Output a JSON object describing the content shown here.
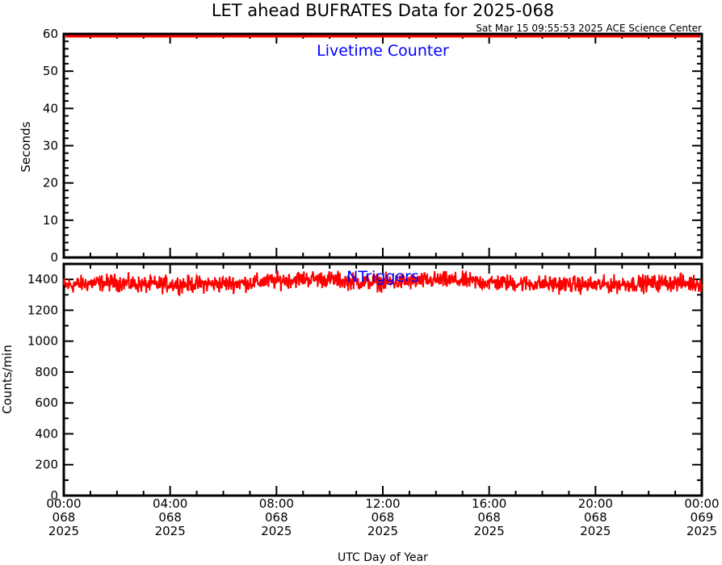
{
  "chart_data": [
    {
      "type": "line",
      "title": "LET ahead BUFRATES Data for 2025-068",
      "subtitle": "Sat Mar 15 09:55:53 2025 ACE Science Center",
      "ylabel": "Seconds",
      "ylim": [
        0,
        60
      ],
      "y_ticks": [
        "0",
        "10",
        "20",
        "30",
        "40",
        "50",
        "60"
      ],
      "series": [
        {
          "name": "Livetime Counter",
          "color": "#ff0000",
          "constant_value": 60
        }
      ]
    },
    {
      "type": "line",
      "ylabel": "Counts/min",
      "xlabel": "UTC Day of Year",
      "ylim": [
        0,
        1500
      ],
      "y_ticks": [
        "0",
        "200",
        "400",
        "600",
        "800",
        "1000",
        "1200",
        "1400"
      ],
      "x_ticks": [
        {
          "time": "00:00",
          "doy": "068",
          "year": "2025"
        },
        {
          "time": "04:00",
          "doy": "068",
          "year": "2025"
        },
        {
          "time": "08:00",
          "doy": "068",
          "year": "2025"
        },
        {
          "time": "12:00",
          "doy": "068",
          "year": "2025"
        },
        {
          "time": "16:00",
          "doy": "068",
          "year": "2025"
        },
        {
          "time": "20:00",
          "doy": "068",
          "year": "2025"
        },
        {
          "time": "00:00",
          "doy": "069",
          "year": "2025"
        }
      ],
      "xlim_hours": [
        0,
        24
      ],
      "series": [
        {
          "name": "NTriggers",
          "color": "#ff0000",
          "hourly_mean": [
            1360,
            1375,
            1380,
            1365,
            1370,
            1368,
            1372,
            1378,
            1390,
            1405,
            1400,
            1385,
            1380,
            1385,
            1395,
            1390,
            1380,
            1375,
            1370,
            1368,
            1362,
            1370,
            1375,
            1378,
            1372
          ],
          "noise_amplitude": 45
        }
      ]
    }
  ]
}
